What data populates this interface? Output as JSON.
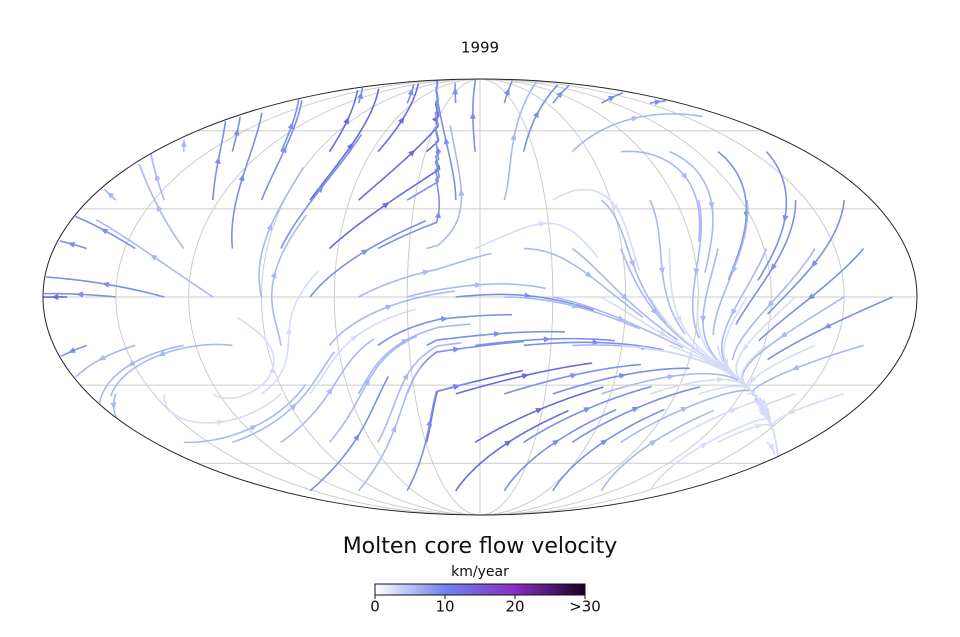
{
  "map": {
    "title": "1999"
  },
  "colorbar": {
    "title": "Molten core flow velocity",
    "unit": "km/year",
    "lim": [
      0,
      30
    ],
    "ticks": [
      0,
      10,
      20,
      {
        "value": 30,
        "label": ">30"
      }
    ]
  }
}
